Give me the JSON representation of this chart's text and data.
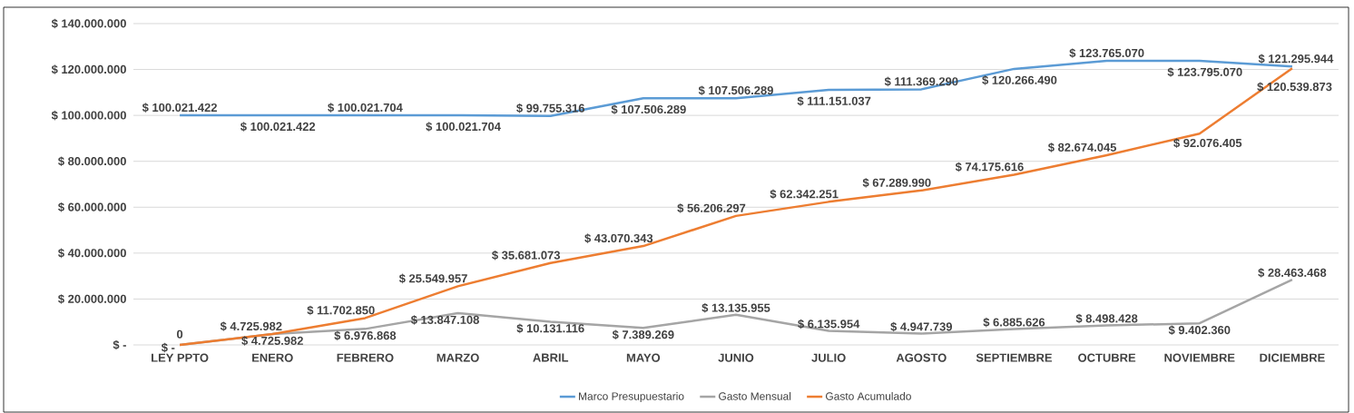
{
  "chart_data": {
    "type": "line",
    "categories": [
      "LEY PPTO",
      "ENERO",
      "FEBRERO",
      "MARZO",
      "ABRIL",
      "MAYO",
      "JUNIO",
      "JULIO",
      "AGOSTO",
      "SEPTIEMBRE",
      "OCTUBRE",
      "NOVIEMBRE",
      "DICIEMBRE"
    ],
    "series": [
      {
        "name": "Marco Presupuestario",
        "color": "#5b9bd5",
        "values": [
          100021422,
          100021422,
          100021704,
          100021704,
          99755316,
          107506289,
          107506289,
          111151037,
          111369290,
          120266490,
          123765070,
          123795070,
          121295944
        ],
        "value_labels": [
          "$ 100.021.422",
          "$ 100.021.422",
          "$ 100.021.704",
          "$ 100.021.704",
          "$ 99.755.316",
          "$ 107.506.289",
          "$ 107.506.289",
          "$ 111.151.037",
          "$ 111.369.290",
          "$ 120.266.490",
          "$ 123.765.070",
          "$ 123.795.070",
          "$ 121.295.944"
        ]
      },
      {
        "name": "Gasto Mensual",
        "color": "#a5a5a5",
        "values": [
          0,
          4725982,
          6976868,
          13847108,
          10131116,
          7389269,
          13135955,
          6135954,
          4947739,
          6885626,
          8498428,
          9402360,
          28463468
        ],
        "value_labels": [
          "$ -",
          "$ 4.725.982",
          "$ 6.976.868",
          "$ 13.847.108",
          "$ 10.131.116",
          "$ 7.389.269",
          "$ 13.135.955",
          "$ 6.135.954",
          "$ 4.947.739",
          "$ 6.885.626",
          "$ 8.498.428",
          "$ 9.402.360",
          "$ 28.463.468"
        ]
      },
      {
        "name": "Gasto Acumulado",
        "color": "#ed7d31",
        "values": [
          0,
          4725982,
          11702850,
          25549957,
          35681073,
          43070343,
          56206297,
          62342251,
          67289990,
          74175616,
          82674045,
          92076405,
          120539873
        ],
        "value_labels": [
          "0",
          "$ 4.725.982",
          "$ 11.702.850",
          "$ 25.549.957",
          "$ 35.681.073",
          "$ 43.070.343",
          "$ 56.206.297",
          "$ 62.342.251",
          "$ 67.289.990",
          "$ 74.175.616",
          "$ 82.674.045",
          "$ 92.076.405",
          "$ 120.539.873"
        ]
      }
    ],
    "ylim": [
      0,
      140000000
    ],
    "yticks": [
      {
        "value": 0,
        "label": "$ -"
      },
      {
        "value": 20000000,
        "label": "$ 20.000.000"
      },
      {
        "value": 40000000,
        "label": "$ 40.000.000"
      },
      {
        "value": 60000000,
        "label": "$ 60.000.000"
      },
      {
        "value": 80000000,
        "label": "$ 80.000.000"
      },
      {
        "value": 100000000,
        "label": "$ 100.000.000"
      },
      {
        "value": 120000000,
        "label": "$ 120.000.000"
      },
      {
        "value": 140000000,
        "label": "$ 140.000.000"
      }
    ],
    "grid": "y",
    "legend": "bottom"
  }
}
